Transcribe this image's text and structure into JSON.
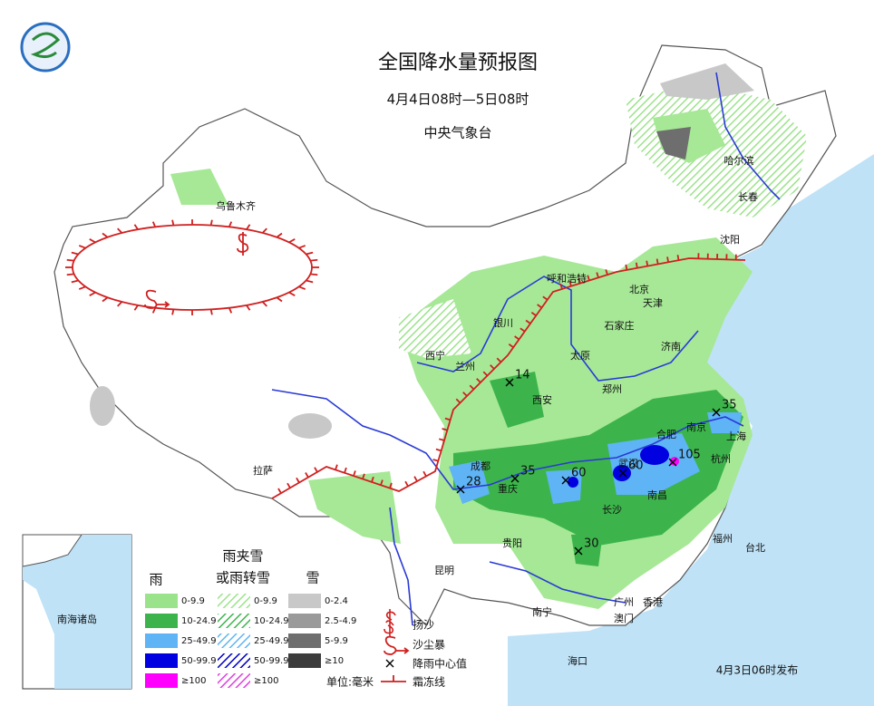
{
  "header": {
    "title": "全国降水量预报图",
    "period": "4月4日08时—5日08时",
    "issuer": "中央气象台"
  },
  "cities": [
    "乌鲁木齐",
    "哈尔滨",
    "长春",
    "沈阳",
    "呼和浩特",
    "北京",
    "天津",
    "石家庄",
    "银川",
    "太原",
    "济南",
    "西宁",
    "兰州",
    "郑州",
    "西安",
    "合肥",
    "南京",
    "上海",
    "杭州",
    "成都",
    "重庆",
    "武汉",
    "南昌",
    "长沙",
    "拉萨",
    "贵阳",
    "昆明",
    "福州",
    "台北",
    "南宁",
    "广州",
    "香港",
    "澳门",
    "海口"
  ],
  "rain_centers": [
    14,
    35,
    28,
    35,
    60,
    60,
    105,
    30
  ],
  "inset_label": "南海诸岛",
  "legend": {
    "rain_title": "雨",
    "mix_title": [
      "雨夹雪",
      "或雨转雪"
    ],
    "snow_title": "雪",
    "rain_ranges": [
      "0-9.9",
      "10-24.9",
      "25-49.9",
      "50-99.9",
      "≥100"
    ],
    "mix_ranges": [
      "0-9.9",
      "10-24.9",
      "25-49.9",
      "50-99.9",
      "≥100"
    ],
    "snow_ranges": [
      "0-2.4",
      "2.5-4.9",
      "5-9.9",
      "≥10"
    ],
    "symbols": [
      "扬沙",
      "沙尘暴",
      "降雨中心值",
      "霜冻线"
    ],
    "unit": "单位:毫米"
  },
  "issued": "4月3日06时发布"
}
